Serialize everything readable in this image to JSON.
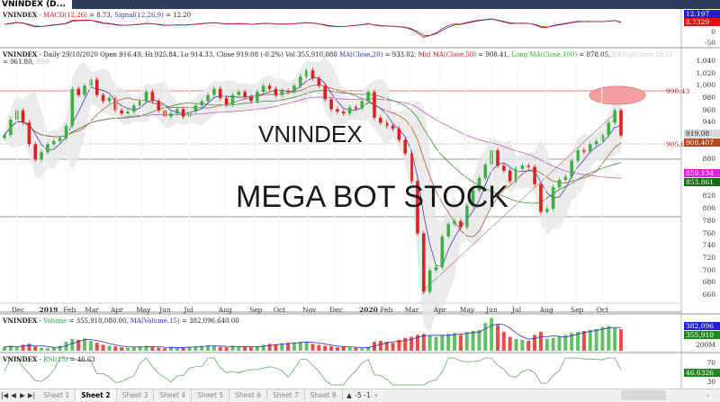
{
  "window": {
    "tab_title": "VNINDEX (D...",
    "tab_close": "×"
  },
  "macd_pane": {
    "symbol": "VNINDEX",
    "sep": " - ",
    "macd_label": "MACD(12,26)",
    "macd_value": " = 8.73, ",
    "signal_label": "Signal(12,26,9)",
    "signal_value": " = 12.20",
    "axis_ticks": [
      "0",
      "-50"
    ],
    "tags": {
      "signal": "12.197",
      "macd": "8.7329"
    }
  },
  "price_pane": {
    "symbol": "VNINDEX",
    "sep": " - ",
    "ohlc": "Daily 29/10/2020 Open 916.49, Hi 925.84, Lo 914.33, Close 919.08 (-0.2%) Vol 355,910,080 ",
    "ma_label": "MA(Close,20)",
    "ma_value": " = 933.02, ",
    "mid_label": "Mid MA(Close,50)",
    "mid_value": " = 908.41, ",
    "long_label": "Long MA(Close,100)",
    "long_value": " = 878.05, ",
    "bb_label": "BBTop(Close,20,2)",
    "bb_value": " = 961.80, ",
    "bb_more": "BBB",
    "levels": {
      "resistance": "990.43",
      "support": "905.63"
    },
    "watermark_1": "VNINDEX",
    "watermark_2": "MEGA BOT STOCK",
    "tags": {
      "close": "919.08",
      "mid_ma": "908.407",
      "magenta": "859.134",
      "long_ma": "853.861"
    },
    "colors": {
      "up": "#3cb043",
      "down": "#e0201e",
      "ma20": "#4040c0",
      "ma50": "#b06040",
      "ma100": "#4a8a4a",
      "ma200": "#c060c0",
      "band": "#e6e6e6",
      "highlight": "#f4a0a0"
    }
  },
  "volume_pane": {
    "symbol": "VNINDEX",
    "sep": " - ",
    "vol_label": "Volume",
    "vol_value": " = 355,910,080.00, ",
    "ma_label": "MA(Volume,15)",
    "ma_value": " = 382,096,640.00",
    "axis_label": "200M",
    "tags": {
      "ma": "382,096",
      "vol": "355,910"
    }
  },
  "rsi_pane": {
    "symbol": "VNINDEX",
    "sep": " - ",
    "rsi_label": "RSI(15)",
    "rsi_value": " = 46.63",
    "axis_ticks": [
      "70",
      "30"
    ],
    "tag": "46.6326"
  },
  "sheets": {
    "tabs": [
      "Sheet 1",
      "Sheet 2",
      "Sheet 3",
      "Sheet 4",
      "Sheet 5",
      "Sheet 6",
      "Sheet 7",
      "Sheet 8"
    ],
    "active": "Sheet 2",
    "nav": [
      "|◀",
      "◀",
      "▶",
      "▶|"
    ],
    "extra": [
      "▲",
      "-5",
      "-1",
      "‹"
    ],
    "scroll_right": "›"
  },
  "chart_data": {
    "type": "candlestick",
    "title": "",
    "ylim": [
      650,
      1050
    ],
    "price_ticks": [
      "1,040",
      "1,020",
      "1,000",
      "980",
      "960",
      "940",
      "880",
      "820",
      "800",
      "780",
      "760",
      "740",
      "720",
      "700",
      "680",
      "660"
    ],
    "x_ticks": [
      {
        "label": "Dec",
        "bar": 2
      },
      {
        "label": "2019",
        "bar": 6.5
      },
      {
        "label": "Feb",
        "bar": 10.4
      },
      {
        "label": "Mar",
        "bar": 13.9
      },
      {
        "label": "Apr",
        "bar": 18.1
      },
      {
        "label": "May",
        "bar": 22.2
      },
      {
        "label": "Jun",
        "bar": 26
      },
      {
        "label": "Jul",
        "bar": 30
      },
      {
        "label": "Aug",
        "bar": 35.6
      },
      {
        "label": "Sep",
        "bar": 40.6
      },
      {
        "label": "Oct",
        "bar": 44.5
      },
      {
        "label": "Nov",
        "bar": 49.2
      },
      {
        "label": "Dec",
        "bar": 53.6
      },
      {
        "label": "2020",
        "bar": 58.4
      },
      {
        "label": "Feb",
        "bar": 61.8
      },
      {
        "label": "Mar",
        "bar": 65.8
      },
      {
        "label": "Apr",
        "bar": 70.5
      },
      {
        "label": "May",
        "bar": 74.7
      },
      {
        "label": "Jun",
        "bar": 79
      },
      {
        "label": "Jul",
        "bar": 83.2
      },
      {
        "label": "Aug",
        "bar": 87.7
      },
      {
        "label": "Sep",
        "bar": 92.7
      },
      {
        "label": "Oct",
        "bar": 96.9
      }
    ],
    "close": [
      920,
      945,
      960,
      940,
      905,
      880,
      892,
      905,
      910,
      915,
      935,
      995,
      985,
      1000,
      1010,
      985,
      975,
      980,
      960,
      955,
      958,
      968,
      975,
      990,
      975,
      960,
      950,
      955,
      962,
      950,
      958,
      968,
      975,
      985,
      995,
      980,
      970,
      985,
      990,
      982,
      975,
      990,
      1000,
      995,
      985,
      992,
      990,
      1000,
      1015,
      1025,
      1012,
      1000,
      978,
      962,
      958,
      955,
      965,
      963,
      975,
      990,
      948,
      940,
      935,
      930,
      912,
      890,
      845,
      760,
      665,
      700,
      705,
      755,
      775,
      780,
      770,
      805,
      830,
      850,
      872,
      895,
      870,
      862,
      845,
      865,
      870,
      868,
      840,
      795,
      800,
      835,
      847,
      852,
      878,
      895,
      893,
      905,
      910,
      920,
      940,
      960,
      919.08
    ],
    "volume_m": [
      180,
      190,
      175,
      200,
      210,
      185,
      170,
      165,
      175,
      190,
      230,
      260,
      250,
      265,
      240,
      220,
      200,
      190,
      185,
      175,
      170,
      180,
      185,
      190,
      175,
      170,
      165,
      180,
      175,
      170,
      180,
      185,
      190,
      195,
      185,
      180,
      175,
      190,
      185,
      180,
      175,
      185,
      200,
      210,
      205,
      215,
      220,
      225,
      230,
      235,
      210,
      200,
      190,
      185,
      175,
      180,
      175,
      170,
      165,
      180,
      230,
      240,
      230,
      220,
      250,
      270,
      280,
      300,
      310,
      290,
      280,
      300,
      310,
      320,
      300,
      330,
      340,
      350,
      420,
      470,
      400,
      330,
      280,
      260,
      250,
      240,
      300,
      330,
      260,
      270,
      280,
      300,
      320,
      330,
      340,
      350,
      360,
      380,
      390,
      370,
      355.91
    ],
    "rsi_ylim": [
      0,
      100
    ],
    "macd_ylim": [
      -60,
      40
    ]
  }
}
